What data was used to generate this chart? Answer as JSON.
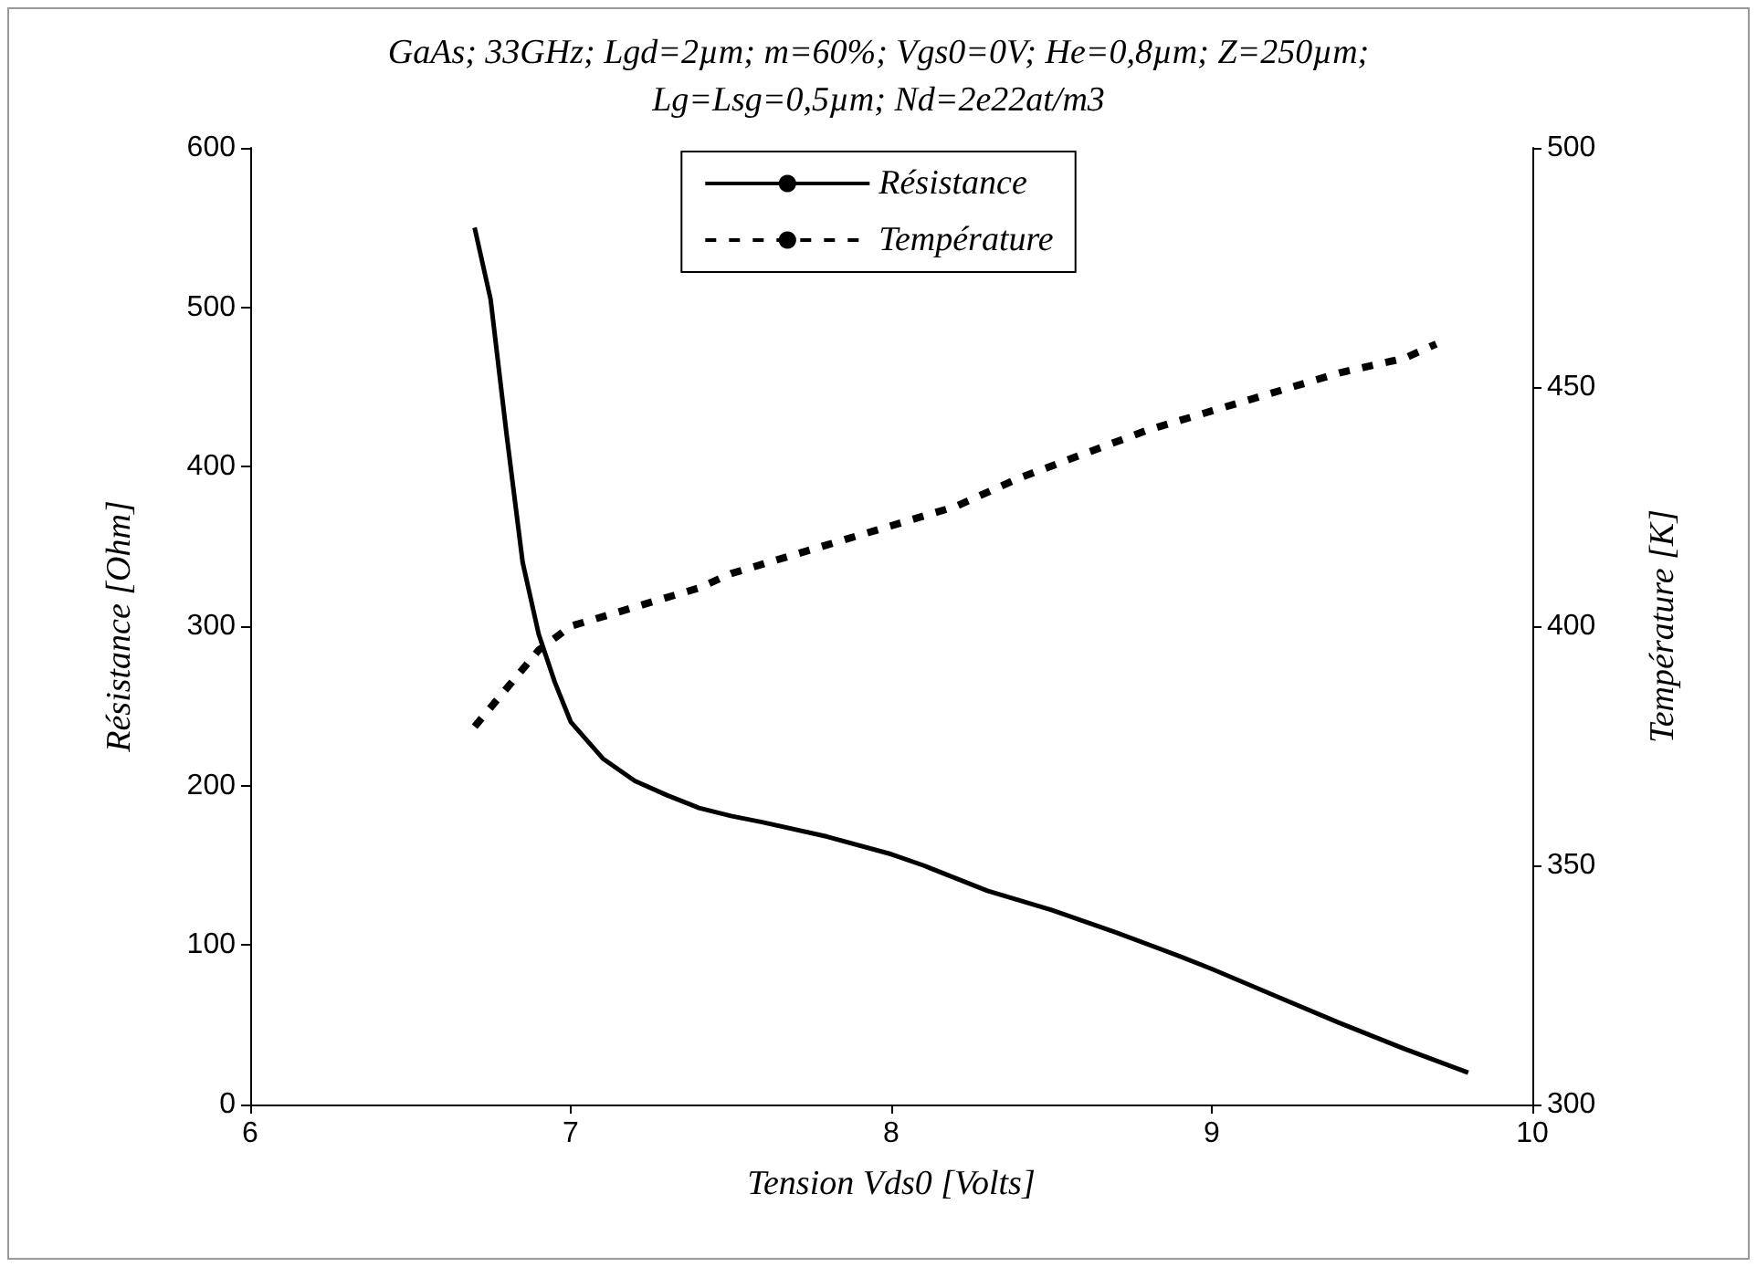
{
  "chart_data": {
    "type": "line",
    "title": "GaAs; 33GHz; Lgd=2µm; m=60%; Vgs0=0V; He=0,8µm; Z=250µm;\nLg=Lsg=0,5µm; Nd=2e22at/m3",
    "xlabel": "Tension Vds0 [Volts]",
    "ylabel": "Résistance [Ohm]",
    "y2label": "Température [K]",
    "xlim": [
      6,
      10
    ],
    "xticks": [
      6,
      7,
      8,
      9,
      10
    ],
    "ylim": [
      0,
      600
    ],
    "yticks": [
      0,
      100,
      200,
      300,
      400,
      500,
      600
    ],
    "y2lim": [
      300,
      500
    ],
    "y2ticks": [
      300,
      350,
      400,
      450,
      500
    ],
    "grid": false,
    "legend": "top",
    "marker": "none",
    "series": [
      {
        "name": "Résistance",
        "color": "#000000",
        "line_style": "solid",
        "x": [
          6.7,
          6.75,
          6.8,
          6.85,
          6.9,
          6.95,
          7.0,
          7.1,
          7.2,
          7.3,
          7.4,
          7.5,
          7.6,
          7.8,
          8.0,
          8.1,
          8.3,
          8.5,
          8.7,
          8.9,
          9.0,
          9.2,
          9.4,
          9.6,
          9.8
        ],
        "values": [
          550,
          505,
          420,
          340,
          295,
          265,
          240,
          217,
          203,
          194,
          186,
          181,
          177,
          168,
          157,
          150,
          134,
          122,
          108,
          93,
          85,
          68,
          51,
          35,
          20
        ]
      },
      {
        "name": "Température",
        "color": "#000000",
        "line_style": "dashed",
        "axis": "y2",
        "x": [
          6.7,
          6.8,
          6.9,
          7.0,
          7.2,
          7.4,
          7.5,
          7.6,
          7.8,
          8.0,
          8.2,
          8.4,
          8.6,
          8.8,
          9.0,
          9.2,
          9.4,
          9.6,
          9.7
        ],
        "values": [
          379,
          387,
          395,
          400,
          404,
          408,
          411,
          413,
          417,
          421,
          425,
          431,
          436,
          441,
          445,
          449,
          453,
          456,
          459
        ]
      }
    ]
  }
}
